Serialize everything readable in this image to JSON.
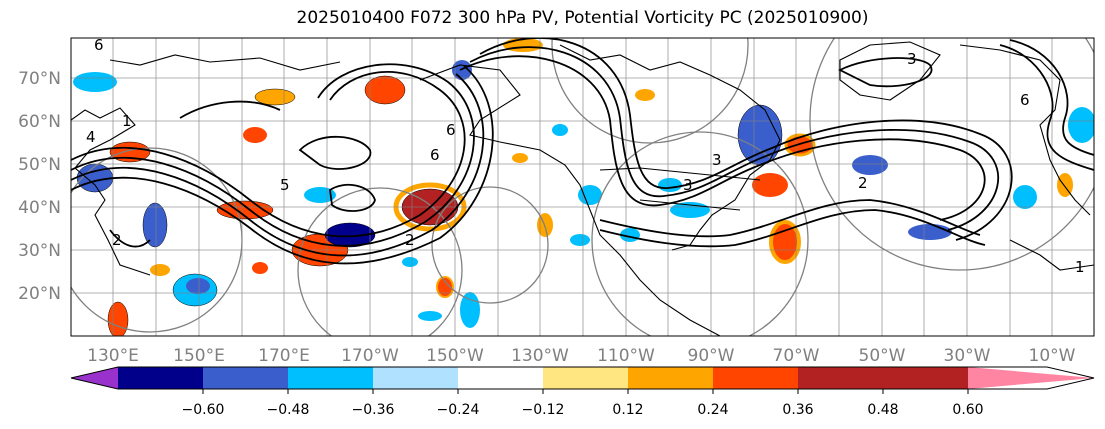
{
  "title": "2025010400 F072 300 hPa PV, Potential Vorticity PC (2025010900)",
  "lat_labels": [
    "70°N",
    "60°N",
    "50°N",
    "40°N",
    "30°N",
    "20°N"
  ],
  "lon_labels": [
    "130°E",
    "150°E",
    "170°E",
    "170°W",
    "150°W",
    "130°W",
    "110°W",
    "90°W",
    "70°W",
    "50°W",
    "30°W",
    "10°W"
  ],
  "colorbar": {
    "colors": [
      "#9932cc",
      "#00008b",
      "#3a5fcd",
      "#00bfff",
      "#b0e2ff",
      "#ffffff",
      "#ffe680",
      "#ffa500",
      "#ff4500",
      "#b22222",
      "#ff85a2"
    ],
    "tick_labels": [
      "−0.60",
      "−0.48",
      "−0.36",
      "−0.24",
      "−0.12",
      "0.12",
      "0.24",
      "0.36",
      "0.48",
      "0.60"
    ]
  },
  "contour_labels": [
    "6",
    "4",
    "1",
    "2",
    "3",
    "5",
    "6",
    "2",
    "3",
    "3",
    "6",
    "1",
    "2",
    "6"
  ]
}
